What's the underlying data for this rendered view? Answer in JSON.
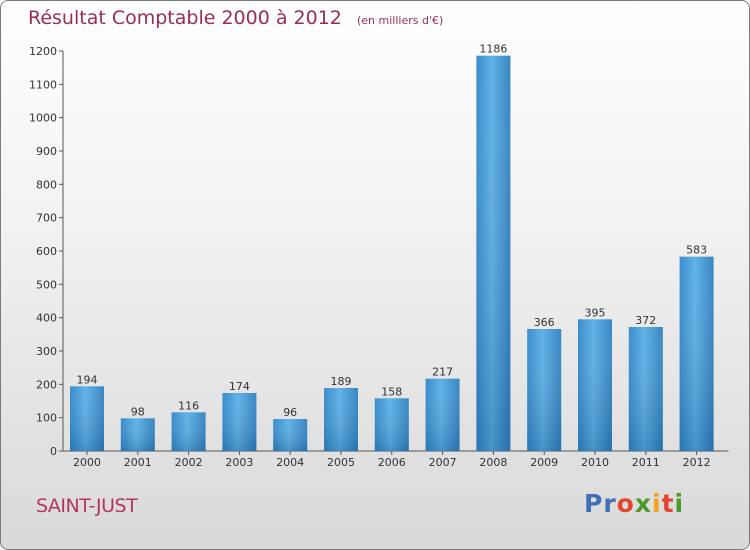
{
  "chart_data": {
    "type": "bar",
    "title": "Résultat Comptable 2000 à 2012",
    "subtitle": "(en milliers d'€)",
    "categories": [
      "2000",
      "2001",
      "2002",
      "2003",
      "2004",
      "2005",
      "2006",
      "2007",
      "2008",
      "2009",
      "2010",
      "2011",
      "2012"
    ],
    "values": [
      194,
      98,
      116,
      174,
      96,
      189,
      158,
      217,
      1186,
      366,
      395,
      372,
      583
    ],
    "ylim": [
      0,
      1200
    ],
    "yticks": [
      0,
      100,
      200,
      300,
      400,
      500,
      600,
      700,
      800,
      900,
      1000,
      1100,
      1200
    ],
    "xlabel": "",
    "ylabel": "",
    "grid": false,
    "bar_color": "#3d95d6"
  },
  "commune": "SAINT-JUST",
  "logo": {
    "text": "Proxiti"
  }
}
